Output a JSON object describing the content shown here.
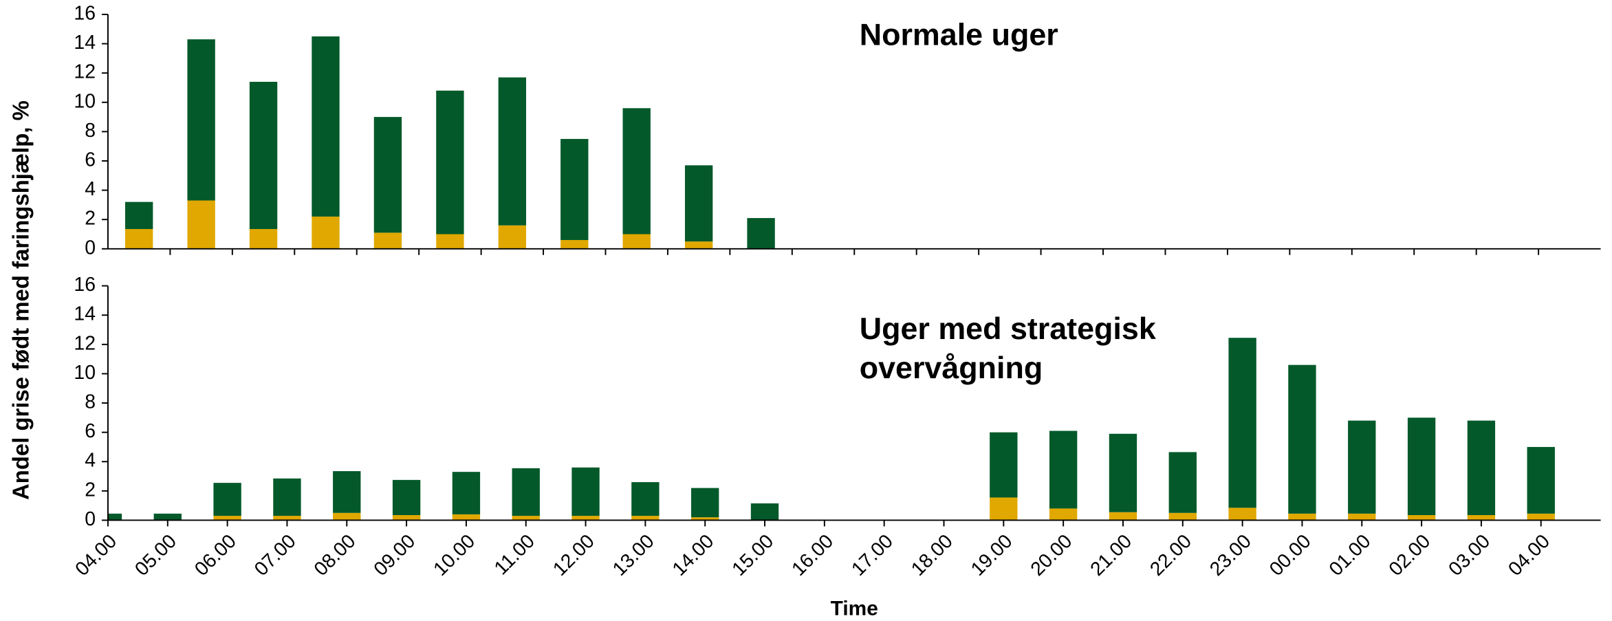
{
  "chart_data": [
    {
      "type": "bar",
      "stacked": true,
      "title": [
        "Normale uger"
      ],
      "categories": [
        null,
        null,
        null,
        null,
        null,
        null,
        null,
        null,
        null,
        null,
        null,
        null,
        null,
        null,
        null,
        null,
        null,
        null,
        null,
        null,
        null,
        null,
        null,
        null
      ],
      "series": [
        {
          "color": "#e0a800",
          "values": [
            1.35,
            3.3,
            1.35,
            2.2,
            1.1,
            1.0,
            1.6,
            0.6,
            1.0,
            0.5,
            0,
            null,
            null,
            null,
            null,
            null,
            null,
            null,
            null,
            null,
            null,
            null,
            null,
            null
          ]
        },
        {
          "color": "#03592a",
          "values": [
            1.85,
            11.0,
            10.05,
            12.3,
            7.9,
            9.8,
            10.1,
            6.9,
            8.6,
            5.2,
            2.1,
            null,
            null,
            null,
            null,
            null,
            null,
            null,
            null,
            null,
            null,
            null,
            null,
            null
          ]
        }
      ],
      "ylim": [
        0,
        16
      ],
      "yticks": [
        0,
        2,
        4,
        6,
        8,
        10,
        12,
        14,
        16
      ]
    },
    {
      "type": "bar",
      "stacked": true,
      "title": [
        "Uger med strategisk",
        "overvågning"
      ],
      "categories": [
        "04.00",
        "05.00",
        "06.00",
        "07.00",
        "08.00",
        "09.00",
        "10.00",
        "11.00",
        "12.00",
        "13.00",
        "14.00",
        "15.00",
        "16.00",
        "17.00",
        "18.00",
        "19.00",
        "20.00",
        "21.00",
        "22.00",
        "23.00",
        "00.00",
        "01.00",
        "02.00",
        "03.00",
        "04.00"
      ],
      "series": [
        {
          "color": "#e0a800",
          "values": [
            0,
            0,
            0.3,
            0.3,
            0.5,
            0.35,
            0.4,
            0.3,
            0.3,
            0.3,
            0.2,
            0,
            0,
            0,
            0,
            1.55,
            0.8,
            0.55,
            0.5,
            0.85,
            0.45,
            0.45,
            0.35,
            0.35,
            0.45
          ]
        },
        {
          "color": "#03592a",
          "values": [
            0.45,
            0.45,
            2.25,
            2.55,
            2.85,
            2.4,
            2.9,
            3.25,
            3.3,
            2.3,
            2.0,
            1.15,
            0,
            0,
            0,
            4.45,
            5.3,
            5.35,
            4.15,
            11.6,
            10.15,
            6.35,
            6.65,
            6.45,
            4.55
          ]
        }
      ],
      "ylim": [
        0,
        16
      ],
      "yticks": [
        0,
        2,
        4,
        6,
        8,
        10,
        12,
        14,
        16
      ]
    }
  ],
  "ylabel": "Andel grise født med faringshjælp, %",
  "xlabel": "Time"
}
